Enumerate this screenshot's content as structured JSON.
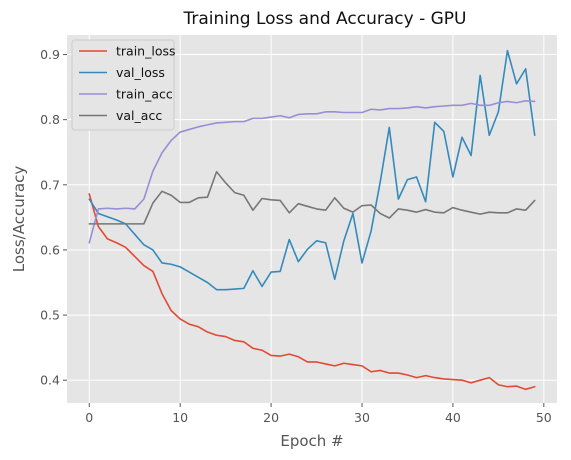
{
  "chart_data": {
    "type": "line",
    "title": "Training Loss and Accuracy - GPU",
    "xlabel": "Epoch #",
    "ylabel": "Loss/Accuracy",
    "xlim": [
      -2.45,
      51.45
    ],
    "ylim": [
      0.365,
      0.93
    ],
    "grid": true,
    "legend_position": "top-left",
    "x_ticks": [
      0,
      10,
      20,
      30,
      40,
      50
    ],
    "y_ticks": [
      0.4,
      0.5,
      0.6,
      0.7,
      0.8,
      0.9
    ],
    "x": [
      0,
      1,
      2,
      3,
      4,
      5,
      6,
      7,
      8,
      9,
      10,
      11,
      12,
      13,
      14,
      15,
      16,
      17,
      18,
      19,
      20,
      21,
      22,
      23,
      24,
      25,
      26,
      27,
      28,
      29,
      30,
      31,
      32,
      33,
      34,
      35,
      36,
      37,
      38,
      39,
      40,
      41,
      42,
      43,
      44,
      45,
      46,
      47,
      48,
      49
    ],
    "series": [
      {
        "name": "train_loss",
        "color": "#E24A33",
        "values": [
          0.686,
          0.636,
          0.617,
          0.611,
          0.604,
          0.59,
          0.576,
          0.567,
          0.533,
          0.507,
          0.494,
          0.486,
          0.482,
          0.474,
          0.469,
          0.467,
          0.461,
          0.459,
          0.449,
          0.446,
          0.438,
          0.437,
          0.44,
          0.436,
          0.428,
          0.428,
          0.425,
          0.422,
          0.426,
          0.424,
          0.422,
          0.413,
          0.415,
          0.411,
          0.411,
          0.408,
          0.404,
          0.407,
          0.404,
          0.402,
          0.401,
          0.4,
          0.396,
          0.4,
          0.404,
          0.393,
          0.39,
          0.391,
          0.386,
          0.39
        ]
      },
      {
        "name": "val_loss",
        "color": "#348ABD",
        "values": [
          0.678,
          0.656,
          0.651,
          0.646,
          0.64,
          0.624,
          0.608,
          0.6,
          0.58,
          0.578,
          0.574,
          0.566,
          0.558,
          0.55,
          0.539,
          0.539,
          0.54,
          0.541,
          0.568,
          0.544,
          0.566,
          0.567,
          0.616,
          0.582,
          0.601,
          0.614,
          0.611,
          0.555,
          0.614,
          0.656,
          0.58,
          0.629,
          0.704,
          0.788,
          0.678,
          0.708,
          0.712,
          0.674,
          0.796,
          0.782,
          0.712,
          0.773,
          0.745,
          0.868,
          0.776,
          0.812,
          0.906,
          0.855,
          0.878,
          0.776
        ]
      },
      {
        "name": "train_acc",
        "color": "#988ED5",
        "values": [
          0.611,
          0.663,
          0.664,
          0.663,
          0.664,
          0.663,
          0.678,
          0.721,
          0.749,
          0.768,
          0.781,
          0.785,
          0.789,
          0.792,
          0.795,
          0.796,
          0.797,
          0.797,
          0.802,
          0.802,
          0.804,
          0.806,
          0.803,
          0.808,
          0.809,
          0.809,
          0.812,
          0.812,
          0.811,
          0.811,
          0.811,
          0.816,
          0.815,
          0.817,
          0.817,
          0.818,
          0.82,
          0.818,
          0.82,
          0.821,
          0.822,
          0.822,
          0.825,
          0.822,
          0.822,
          0.826,
          0.828,
          0.826,
          0.829,
          0.828
        ]
      },
      {
        "name": "val_acc",
        "color": "#777777",
        "values": [
          0.64,
          0.64,
          0.64,
          0.64,
          0.64,
          0.64,
          0.64,
          0.672,
          0.69,
          0.684,
          0.673,
          0.673,
          0.68,
          0.681,
          0.72,
          0.703,
          0.688,
          0.684,
          0.661,
          0.679,
          0.677,
          0.676,
          0.657,
          0.671,
          0.667,
          0.663,
          0.661,
          0.68,
          0.664,
          0.658,
          0.668,
          0.669,
          0.656,
          0.649,
          0.663,
          0.661,
          0.658,
          0.662,
          0.658,
          0.657,
          0.665,
          0.661,
          0.658,
          0.655,
          0.658,
          0.657,
          0.657,
          0.663,
          0.661,
          0.676
        ]
      }
    ]
  },
  "colors": {
    "plot_background": "#E5E5E5",
    "grid": "#FFFFFF",
    "page_background": "#FFFFFF"
  }
}
